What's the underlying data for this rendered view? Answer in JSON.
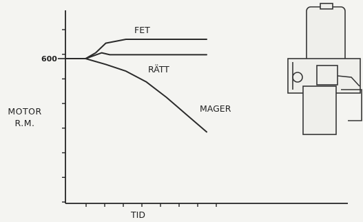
{
  "chart_data": {
    "type": "line",
    "xlabel": "TID",
    "ylabel": [
      "MOTOR",
      "R.M."
    ],
    "y_tick_label": "600",
    "x_tick_count": 8,
    "y_tick_count": 8,
    "xlim": [
      0,
      10
    ],
    "ylim": [
      0,
      10
    ],
    "series": [
      {
        "name": "FET",
        "x": [
          0,
          1,
          1.5,
          2,
          3,
          5,
          7
        ],
        "y": [
          7.5,
          7.5,
          7.8,
          8.3,
          8.5,
          8.5,
          8.5
        ]
      },
      {
        "name": "RÄTT",
        "x": [
          0,
          1,
          1.4,
          1.8,
          2.2,
          3,
          5,
          7
        ],
        "y": [
          7.5,
          7.5,
          7.65,
          7.8,
          7.7,
          7.7,
          7.7,
          7.7
        ]
      },
      {
        "name": "MAGER",
        "x": [
          0,
          1,
          2,
          3,
          4,
          5,
          6,
          7
        ],
        "y": [
          7.5,
          7.5,
          7.2,
          6.85,
          6.3,
          5.5,
          4.6,
          3.7
        ]
      }
    ],
    "colors": {
      "line": "#2a2a2a",
      "axis": "#222222",
      "background": "#f4f4f1"
    }
  }
}
